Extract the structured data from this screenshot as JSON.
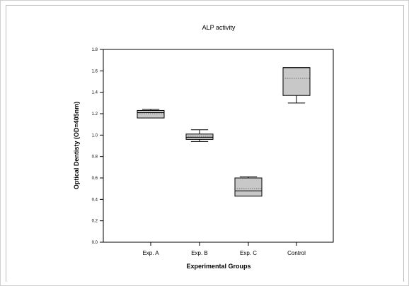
{
  "chart_data": {
    "type": "box",
    "title": "ALP activity",
    "xlabel": "Experimental Groups",
    "ylabel": "Optical Dentisty (OD=405nm)",
    "ylim": [
      0,
      1.8
    ],
    "yticks": [
      "0.0",
      "0.2",
      "0.4",
      "0.6",
      "0.8",
      "1.0",
      "1.2",
      "1.4",
      "1.6",
      "1.8"
    ],
    "categories": [
      "Exp. A",
      "Exp. B",
      "Exp. C",
      "Control"
    ],
    "boxes": [
      {
        "category": "Exp. A",
        "min": 1.16,
        "q1": 1.16,
        "median": 1.21,
        "mean": 1.2,
        "q3": 1.23,
        "max": 1.24
      },
      {
        "category": "Exp. B",
        "min": 0.94,
        "q1": 0.96,
        "median": 0.98,
        "mean": 0.99,
        "q3": 1.01,
        "max": 1.05
      },
      {
        "category": "Exp. C",
        "min": 0.43,
        "q1": 0.43,
        "median": 0.48,
        "mean": 0.5,
        "q3": 0.6,
        "max": 0.61
      },
      {
        "category": "Control",
        "min": 1.3,
        "q1": 1.37,
        "median": 1.63,
        "mean": 1.53,
        "q3": 1.63,
        "max": 1.63
      }
    ],
    "box_fill": "#c8c8c8",
    "line_color": "#000000",
    "mean_line_color": "#6e6e6e",
    "grid": false
  }
}
